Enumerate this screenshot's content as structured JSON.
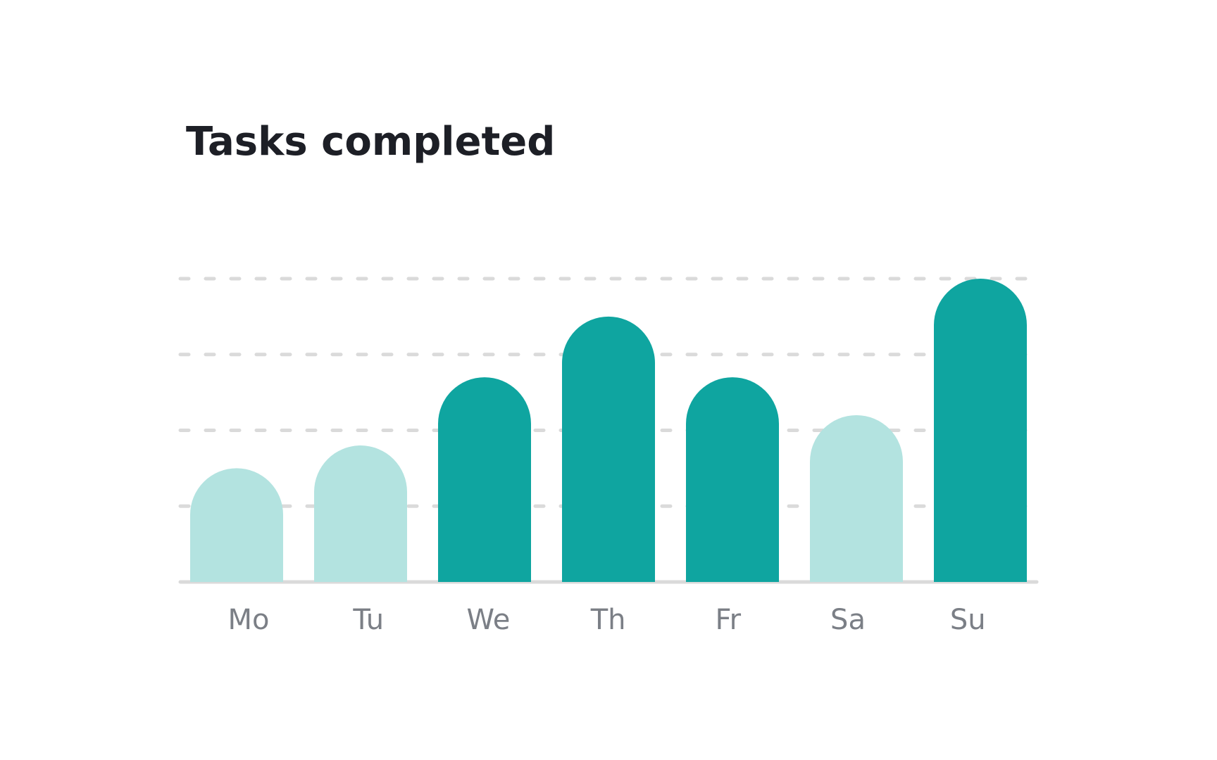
{
  "chart_data": {
    "type": "bar",
    "title": "Tasks completed",
    "categories": [
      "Mo",
      "Tu",
      "We",
      "Th",
      "Fr",
      "Sa",
      "Su"
    ],
    "values": [
      1.5,
      1.8,
      2.7,
      3.5,
      2.7,
      2.2,
      4.0
    ],
    "colors": [
      "#b3e3e0",
      "#b3e3e0",
      "#0fa5a0",
      "#0fa5a0",
      "#0fa5a0",
      "#b3e3e0",
      "#0fa5a0"
    ],
    "ylim": [
      0,
      4
    ],
    "yticks": [
      0,
      1,
      2,
      3,
      4
    ],
    "grid": true
  }
}
